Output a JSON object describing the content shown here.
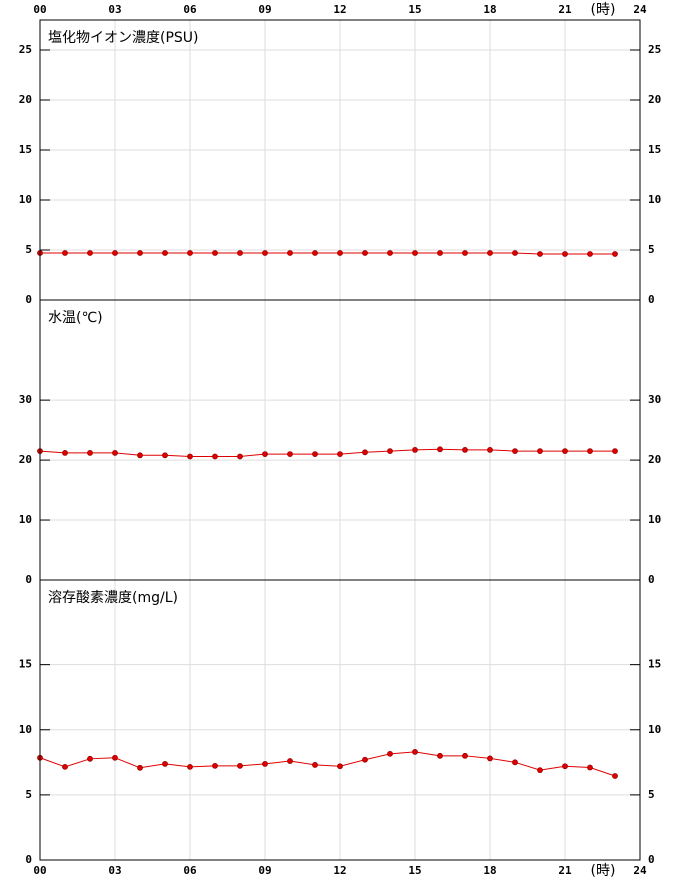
{
  "chart_data": [
    {
      "type": "line",
      "title": "塩化物イオン濃度(PSU)",
      "xlabel": "(時)",
      "x": [
        0,
        1,
        2,
        3,
        4,
        5,
        6,
        7,
        8,
        9,
        10,
        11,
        12,
        13,
        14,
        15,
        16,
        17,
        18,
        19,
        20,
        21,
        22,
        23
      ],
      "values": [
        4.7,
        4.7,
        4.7,
        4.7,
        4.7,
        4.7,
        4.7,
        4.7,
        4.7,
        4.7,
        4.7,
        4.7,
        4.7,
        4.7,
        4.7,
        4.7,
        4.7,
        4.7,
        4.7,
        4.7,
        4.6,
        4.6,
        4.6,
        4.6
      ],
      "color": "#e00000",
      "xlim": [
        0,
        24
      ],
      "xticks": [
        {
          "value": 0,
          "label": "00"
        },
        {
          "value": 3,
          "label": "03"
        },
        {
          "value": 6,
          "label": "06"
        },
        {
          "value": 9,
          "label": "09"
        },
        12,
        15,
        18,
        21,
        24
      ],
      "ylim": [
        0,
        28
      ],
      "yticks": [
        0,
        5,
        10,
        15,
        20,
        25
      ],
      "grid": true
    },
    {
      "type": "line",
      "title": "水温(℃)",
      "x": [
        0,
        1,
        2,
        3,
        4,
        5,
        6,
        7,
        8,
        9,
        10,
        11,
        12,
        13,
        14,
        15,
        16,
        17,
        18,
        19,
        20,
        21,
        22,
        23
      ],
      "values": [
        21.5,
        21.2,
        21.2,
        21.2,
        20.8,
        20.8,
        20.6,
        20.6,
        20.6,
        21.0,
        21.0,
        21.0,
        21.0,
        21.3,
        21.5,
        21.7,
        21.8,
        21.7,
        21.7,
        21.5,
        21.5,
        21.5,
        21.5,
        21.5
      ],
      "color": "#e00000",
      "xlim": [
        0,
        24
      ],
      "xticks": [
        0,
        3,
        6,
        9,
        12,
        15,
        18,
        21,
        24
      ],
      "ylim": [
        0,
        46.7
      ],
      "yticks": [
        0,
        10,
        20,
        30
      ],
      "grid": true
    },
    {
      "type": "line",
      "title": "溶存酸素濃度(mg/L)",
      "xlabel": "(時)",
      "x": [
        0,
        1,
        2,
        3,
        4,
        5,
        6,
        7,
        8,
        9,
        10,
        11,
        12,
        13,
        14,
        15,
        16,
        17,
        18,
        19,
        20,
        21,
        22,
        23
      ],
      "values": [
        7.85,
        7.15,
        7.77,
        7.85,
        7.08,
        7.38,
        7.15,
        7.23,
        7.23,
        7.38,
        7.6,
        7.3,
        7.2,
        7.7,
        8.15,
        8.3,
        8.0,
        8.0,
        7.8,
        7.5,
        6.9,
        7.2,
        7.1,
        6.45
      ],
      "color": "#e00000",
      "xlim": [
        0,
        24
      ],
      "xticks": [
        {
          "value": 0,
          "label": "00"
        },
        {
          "value": 3,
          "label": "03"
        },
        {
          "value": 6,
          "label": "06"
        },
        {
          "value": 9,
          "label": "09"
        },
        12,
        15,
        18,
        21,
        24
      ],
      "ylim": [
        0,
        21.5
      ],
      "yticks": [
        0,
        5,
        10,
        15
      ],
      "grid": true
    }
  ]
}
